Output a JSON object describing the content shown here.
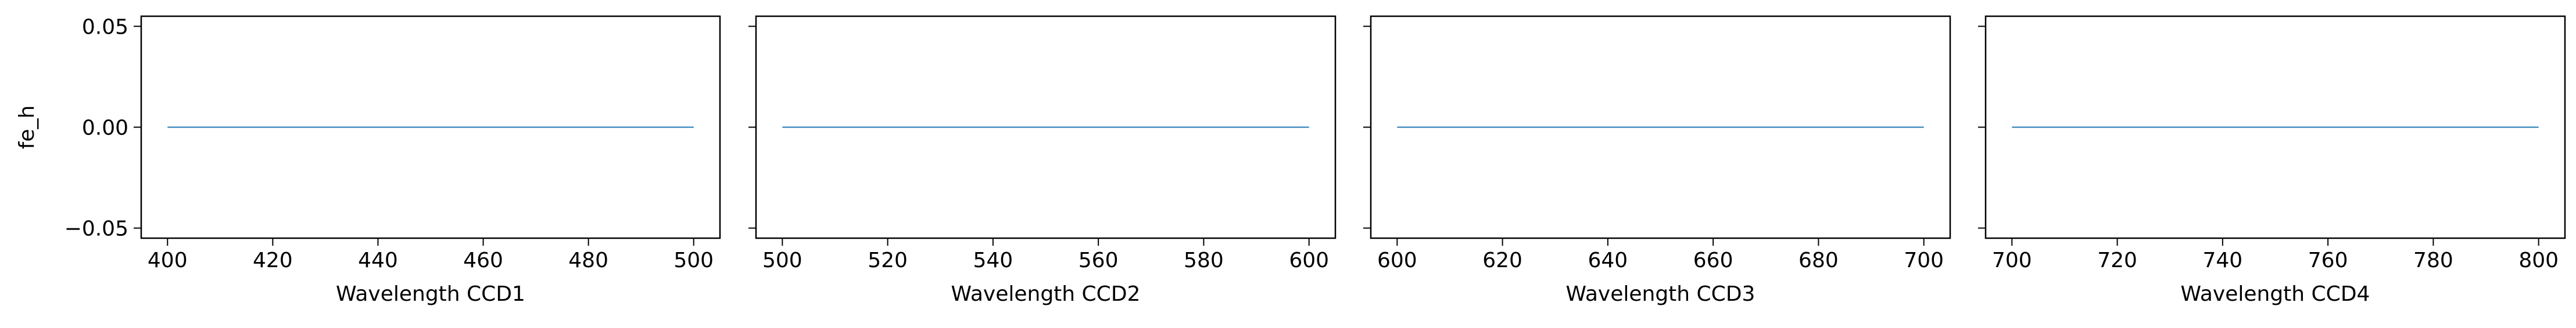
{
  "chart_data": [
    {
      "type": "line",
      "title": "",
      "xlabel": "Wavelength CCD1",
      "ylabel": "fe_h",
      "xlim": [
        395,
        505
      ],
      "ylim": [
        -0.055,
        0.055
      ],
      "xticks": [
        400,
        420,
        440,
        460,
        480,
        500
      ],
      "yticks": [
        -0.05,
        0.0,
        0.05
      ],
      "ytick_labels": [
        "−0.05",
        "0.00",
        "0.05"
      ],
      "series": [
        {
          "name": "fe_h",
          "x": [
            400,
            500
          ],
          "y": [
            0.0,
            0.0
          ],
          "color": "#1f77b4"
        }
      ]
    },
    {
      "type": "line",
      "title": "",
      "xlabel": "Wavelength CCD2",
      "ylabel": "",
      "xlim": [
        495,
        605
      ],
      "ylim": [
        -0.055,
        0.055
      ],
      "xticks": [
        500,
        520,
        540,
        560,
        580,
        600
      ],
      "yticks": [
        -0.05,
        0.0,
        0.05
      ],
      "series": [
        {
          "name": "fe_h",
          "x": [
            500,
            600
          ],
          "y": [
            0.0,
            0.0
          ],
          "color": "#1f77b4"
        }
      ]
    },
    {
      "type": "line",
      "title": "",
      "xlabel": "Wavelength CCD3",
      "ylabel": "",
      "xlim": [
        595,
        705
      ],
      "ylim": [
        -0.055,
        0.055
      ],
      "xticks": [
        600,
        620,
        640,
        660,
        680,
        700
      ],
      "yticks": [
        -0.05,
        0.0,
        0.05
      ],
      "series": [
        {
          "name": "fe_h",
          "x": [
            600,
            700
          ],
          "y": [
            0.0,
            0.0
          ],
          "color": "#1f77b4"
        }
      ]
    },
    {
      "type": "line",
      "title": "",
      "xlabel": "Wavelength CCD4",
      "ylabel": "",
      "xlim": [
        695,
        805
      ],
      "ylim": [
        -0.055,
        0.055
      ],
      "xticks": [
        700,
        720,
        740,
        760,
        780,
        800
      ],
      "yticks": [
        -0.05,
        0.0,
        0.05
      ],
      "series": [
        {
          "name": "fe_h",
          "x": [
            700,
            800
          ],
          "y": [
            0.0,
            0.0
          ],
          "color": "#1f77b4"
        }
      ]
    }
  ]
}
